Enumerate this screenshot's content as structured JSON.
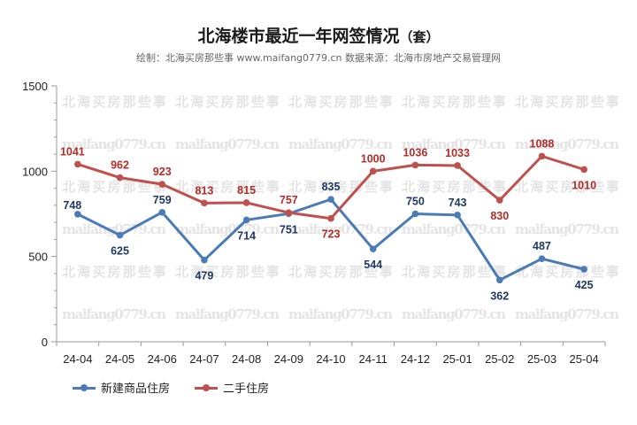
{
  "title": "北海楼市最近一年网签情况",
  "title_unit": "（套）",
  "subtitle": "绘制：北海买房那些事 www.maifang0779.cn  数据来源：北海市房地产交易管理网",
  "watermark": {
    "line1": "北海买房那些事",
    "line2": "maifang0779.cn"
  },
  "chart_data": {
    "type": "line",
    "categories": [
      "24-04",
      "24-05",
      "24-06",
      "24-07",
      "24-08",
      "24-09",
      "24-10",
      "24-11",
      "24-12",
      "25-01",
      "25-02",
      "25-03",
      "25-04"
    ],
    "ylim": [
      0,
      1500
    ],
    "yticks": [
      0,
      500,
      1000,
      1500
    ],
    "grid": false,
    "legend_position": "bottom-left",
    "series": [
      {
        "name": "新建商品住房",
        "color": "#4b7bb6",
        "values": [
          748,
          625,
          759,
          479,
          714,
          751,
          835,
          544,
          750,
          743,
          362,
          487,
          425
        ]
      },
      {
        "name": "二手住房",
        "color": "#c0504d",
        "values": [
          1041,
          962,
          923,
          813,
          815,
          757,
          723,
          1000,
          1036,
          1033,
          830,
          1088,
          1010
        ]
      }
    ]
  }
}
